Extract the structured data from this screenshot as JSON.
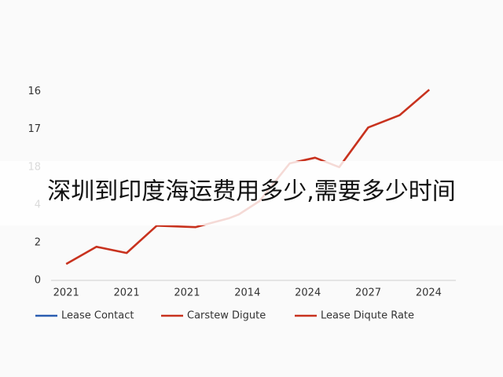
{
  "overlay_title": "深圳到印度海运费用多少,需要多少时间",
  "chart_data": {
    "type": "line",
    "x": [
      0,
      0.5,
      1,
      1.5,
      2.14,
      2.7,
      2.86,
      3.2,
      3.7,
      4.12,
      4.52,
      5,
      5.52,
      6.01
    ],
    "values": [
      0.87,
      1.78,
      1.45,
      2.9,
      2.82,
      3.3,
      3.5,
      4.2,
      6.2,
      6.5,
      6.0,
      8.1,
      8.75,
      10.1
    ],
    "color": "#c8321e",
    "xlim": [
      -0.25,
      6.45
    ],
    "xticks": [
      {
        "value": 0,
        "label": "2021"
      },
      {
        "value": 1,
        "label": "2021"
      },
      {
        "value": 2,
        "label": "2021"
      },
      {
        "value": 3,
        "label": "2014"
      },
      {
        "value": 4,
        "label": "2024"
      },
      {
        "value": 5,
        "label": "2027"
      },
      {
        "value": 6,
        "label": "2024"
      }
    ],
    "ylim": [
      0,
      10.4
    ],
    "yticks": [
      0,
      2,
      4,
      {
        "value": 6,
        "label": "18"
      },
      {
        "value": 8,
        "label": "17"
      },
      {
        "value": 10,
        "label": "16"
      }
    ],
    "legend": [
      {
        "name": "Lease Contact",
        "color": "#2a5db0"
      },
      {
        "name": "Carstew Digute",
        "color": "#c8321e"
      },
      {
        "name": "Lease Diqute Rate",
        "color": "#c8321e"
      }
    ]
  }
}
